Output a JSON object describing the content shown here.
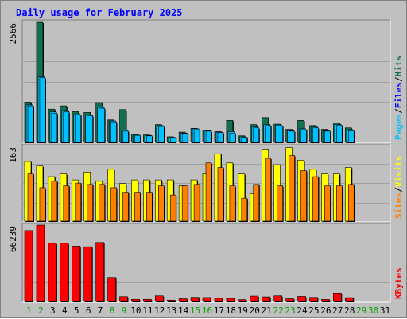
{
  "window": {
    "title": "Daily usage for February 2025"
  },
  "colors": {
    "hits": "#107050",
    "files": "#00c0ff",
    "pages": "#00c0ff",
    "visits": "#ffff00",
    "sites": "#ff8000",
    "kbytes": "#ff0000",
    "weekday_label": "#000000",
    "weekend_label": "#00a000",
    "title": "#0000ff",
    "plot_bg": "#c0c0c0"
  },
  "chart_data": [
    {
      "type": "bar",
      "title": "Daily usage for February 2025",
      "ymax_label": "2566",
      "ymax": 2566,
      "legend": [
        {
          "label": "Pages",
          "color": "#00c0ff"
        },
        {
          "sep": "/"
        },
        {
          "label": "Files",
          "color": "#0000ff"
        },
        {
          "sep": "/"
        },
        {
          "label": "Hits",
          "color": "#107050"
        }
      ],
      "categories": [
        "1",
        "2",
        "3",
        "4",
        "5",
        "6",
        "7",
        "8",
        "9",
        "10",
        "11",
        "12",
        "13",
        "14",
        "15",
        "16",
        "17",
        "18",
        "19",
        "20",
        "21",
        "22",
        "23",
        "24",
        "25",
        "26",
        "27",
        "28",
        "29",
        "30",
        "31"
      ],
      "series": [
        {
          "name": "Hits",
          "values": [
            860,
            2566,
            710,
            780,
            660,
            640,
            850,
            480,
            700,
            180,
            160,
            380,
            120,
            220,
            300,
            260,
            230,
            470,
            140,
            380,
            530,
            390,
            280,
            470,
            360,
            280,
            420,
            310,
            0,
            0,
            0
          ]
        },
        {
          "name": "Files",
          "values": [
            800,
            1400,
            650,
            680,
            610,
            590,
            750,
            460,
            260,
            160,
            150,
            360,
            110,
            200,
            290,
            250,
            220,
            230,
            120,
            330,
            380,
            370,
            250,
            290,
            330,
            250,
            380,
            270,
            0,
            0,
            0
          ]
        },
        {
          "name": "Pages",
          "values": [
            780,
            1380,
            620,
            650,
            590,
            570,
            730,
            440,
            240,
            150,
            140,
            340,
            100,
            190,
            270,
            240,
            210,
            200,
            110,
            310,
            360,
            350,
            240,
            270,
            310,
            240,
            360,
            250,
            0,
            0,
            0
          ]
        }
      ]
    },
    {
      "type": "bar",
      "ymax_label": "163",
      "ymax": 163,
      "legend": [
        {
          "label": "Sites",
          "color": "#ff8000"
        },
        {
          "sep": "/"
        },
        {
          "label": "Visits",
          "color": "#ffff00"
        }
      ],
      "categories": [
        "1",
        "2",
        "3",
        "4",
        "5",
        "6",
        "7",
        "8",
        "9",
        "10",
        "11",
        "12",
        "13",
        "14",
        "15",
        "16",
        "17",
        "18",
        "19",
        "20",
        "21",
        "22",
        "23",
        "24",
        "25",
        "26",
        "27",
        "28",
        "29",
        "30",
        "31"
      ],
      "series": [
        {
          "name": "Visits",
          "values": [
            130,
            120,
            97,
            103,
            90,
            107,
            87,
            113,
            82,
            90,
            90,
            90,
            90,
            77,
            90,
            103,
            147,
            127,
            103,
            60,
            157,
            123,
            160,
            133,
            113,
            103,
            103,
            117,
            0,
            0,
            0
          ]
        },
        {
          "name": "Sites",
          "values": [
            103,
            73,
            87,
            77,
            83,
            80,
            80,
            73,
            63,
            63,
            63,
            77,
            57,
            77,
            80,
            127,
            117,
            77,
            50,
            80,
            137,
            77,
            143,
            110,
            97,
            77,
            77,
            80,
            0,
            0,
            0
          ]
        }
      ]
    },
    {
      "type": "bar",
      "ymax_label": "66239",
      "ymax": 66239,
      "legend": [
        {
          "label": "KBytes",
          "color": "#ff0000"
        }
      ],
      "categories": [
        "1",
        "2",
        "3",
        "4",
        "5",
        "6",
        "7",
        "8",
        "9",
        "10",
        "11",
        "12",
        "13",
        "14",
        "15",
        "16",
        "17",
        "18",
        "19",
        "20",
        "21",
        "22",
        "23",
        "24",
        "25",
        "26",
        "27",
        "28",
        "29",
        "30",
        "31"
      ],
      "series": [
        {
          "name": "KBytes",
          "values": [
            61500,
            66239,
            50500,
            50500,
            48000,
            47500,
            51200,
            20900,
            4300,
            1900,
            1900,
            5000,
            1200,
            2400,
            3700,
            3500,
            2800,
            2700,
            1600,
            4800,
            4100,
            5000,
            2400,
            4500,
            3600,
            1800,
            7400,
            3400,
            0,
            0,
            0
          ]
        }
      ]
    }
  ],
  "day_labels": {
    "weekend_days": [
      "1",
      "2",
      "8",
      "9",
      "15",
      "16",
      "22",
      "23",
      "29",
      "30"
    ]
  }
}
